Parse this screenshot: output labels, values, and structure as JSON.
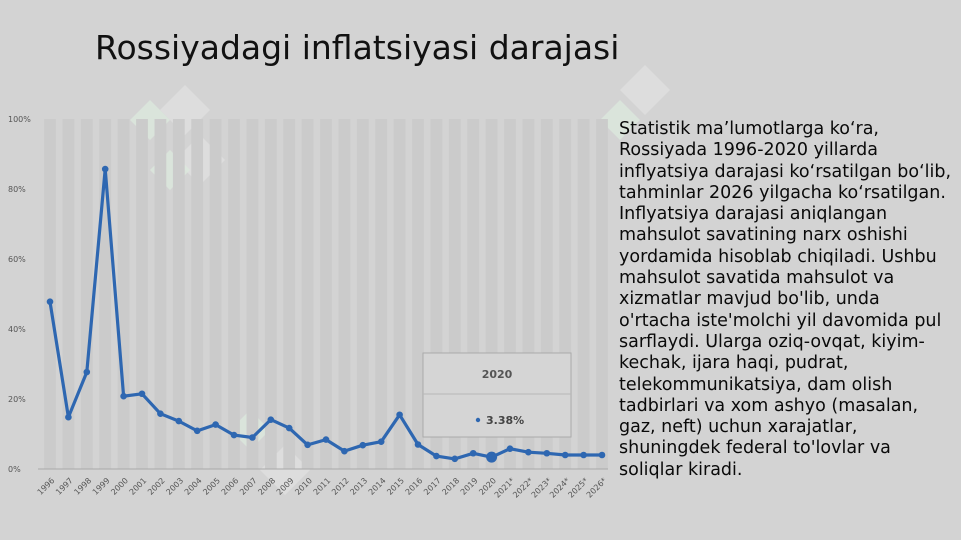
{
  "slide": {
    "title": "Rossiyadagi inflatsiyasi darajasi",
    "description": "Statistik ma’lumotlarga ko‘ra, Rossiyada 1996-2020 yillarda inflyatsiya darajasi ko‘rsatilgan bo‘lib, tahminlar 2026 yilgacha ko‘rsatilgan. Inflyatsiya darajasi aniqlangan mahsulot savatining narx oshishi yordamida hisoblab chiqiladi. Ushbu mahsulot savatida mahsulot va xizmatlar mavjud bo'lib, unda o'rtacha iste'molchi yil davomida pul sarflaydi. Ularga oziq-ovqat, kiyim-kechak, ijara haqi, pudrat, telekommunikatsiya, dam olish tadbirlari va xom ashyo (masalan, gaz, neft) uchun xarajatlar, shuningdek federal to'lovlar va soliqlar kiradi."
  },
  "colors": {
    "line": "#2e67b1",
    "background": "#d3d3d3",
    "column_band": "#cbcbcb"
  },
  "chart_data": {
    "type": "line",
    "categories": [
      "1996",
      "1997",
      "1998",
      "1999",
      "2000",
      "2001",
      "2002",
      "2003",
      "2004",
      "2005",
      "2006",
      "2007",
      "2008",
      "2009",
      "2010",
      "2011",
      "2012",
      "2013",
      "2014",
      "2015",
      "2016",
      "2017",
      "2018",
      "2019",
      "2020",
      "2021*",
      "2022*",
      "2023*",
      "2024*",
      "2025*",
      "2026*"
    ],
    "series": [
      {
        "values": [
          47.8,
          14.8,
          27.7,
          85.7,
          20.8,
          21.5,
          15.8,
          13.7,
          10.9,
          12.7,
          9.7,
          9.0,
          14.1,
          11.7,
          6.9,
          8.4,
          5.1,
          6.8,
          7.8,
          15.5,
          7.0,
          3.7,
          2.9,
          4.5,
          3.38,
          5.8,
          4.8,
          4.5,
          4.0,
          4.0,
          4.0
        ]
      }
    ],
    "yticks": [
      "0%",
      "20%",
      "40%",
      "60%",
      "80%",
      "100%"
    ],
    "ylim": [
      0,
      100
    ],
    "tooltip": {
      "label": "2020",
      "value": "3.38%"
    },
    "grid": false,
    "highlight_index": 24
  }
}
